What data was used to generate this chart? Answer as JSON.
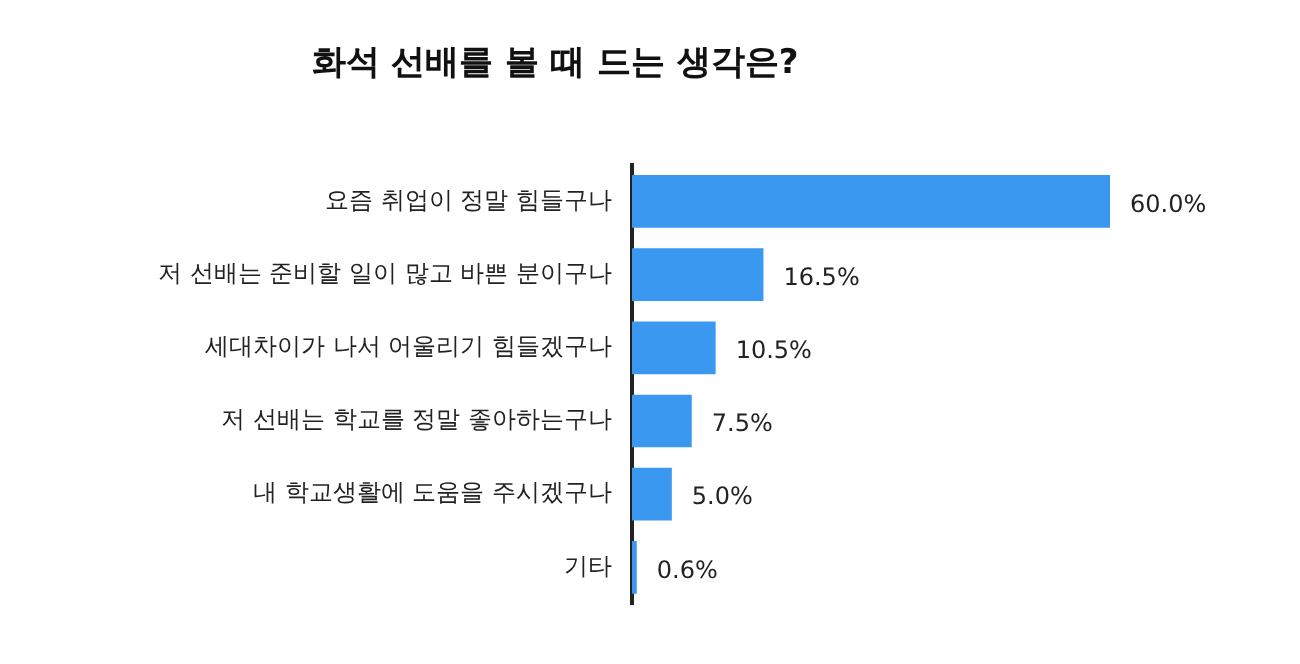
{
  "chart_data": {
    "type": "bar",
    "orientation": "horizontal",
    "title": "화석 선배를 볼 때 드는 생각은?",
    "categories": [
      "요즘 취업이 정말 힘들구나",
      "저 선배는 준비할 일이 많고 바쁜 분이구나",
      "세대차이가 나서 어울리기 힘들겠구나",
      "저 선배는 학교를 정말 좋아하는구나",
      "내 학교생활에 도움을 주시겠구나",
      "기타"
    ],
    "values": [
      60.0,
      16.5,
      10.5,
      7.5,
      5.0,
      0.6
    ],
    "value_labels": [
      "60.0%",
      "16.5%",
      "10.5%",
      "7.5%",
      "5.0%",
      "0.6%"
    ],
    "color": "#3a98f0",
    "legend": false
  }
}
